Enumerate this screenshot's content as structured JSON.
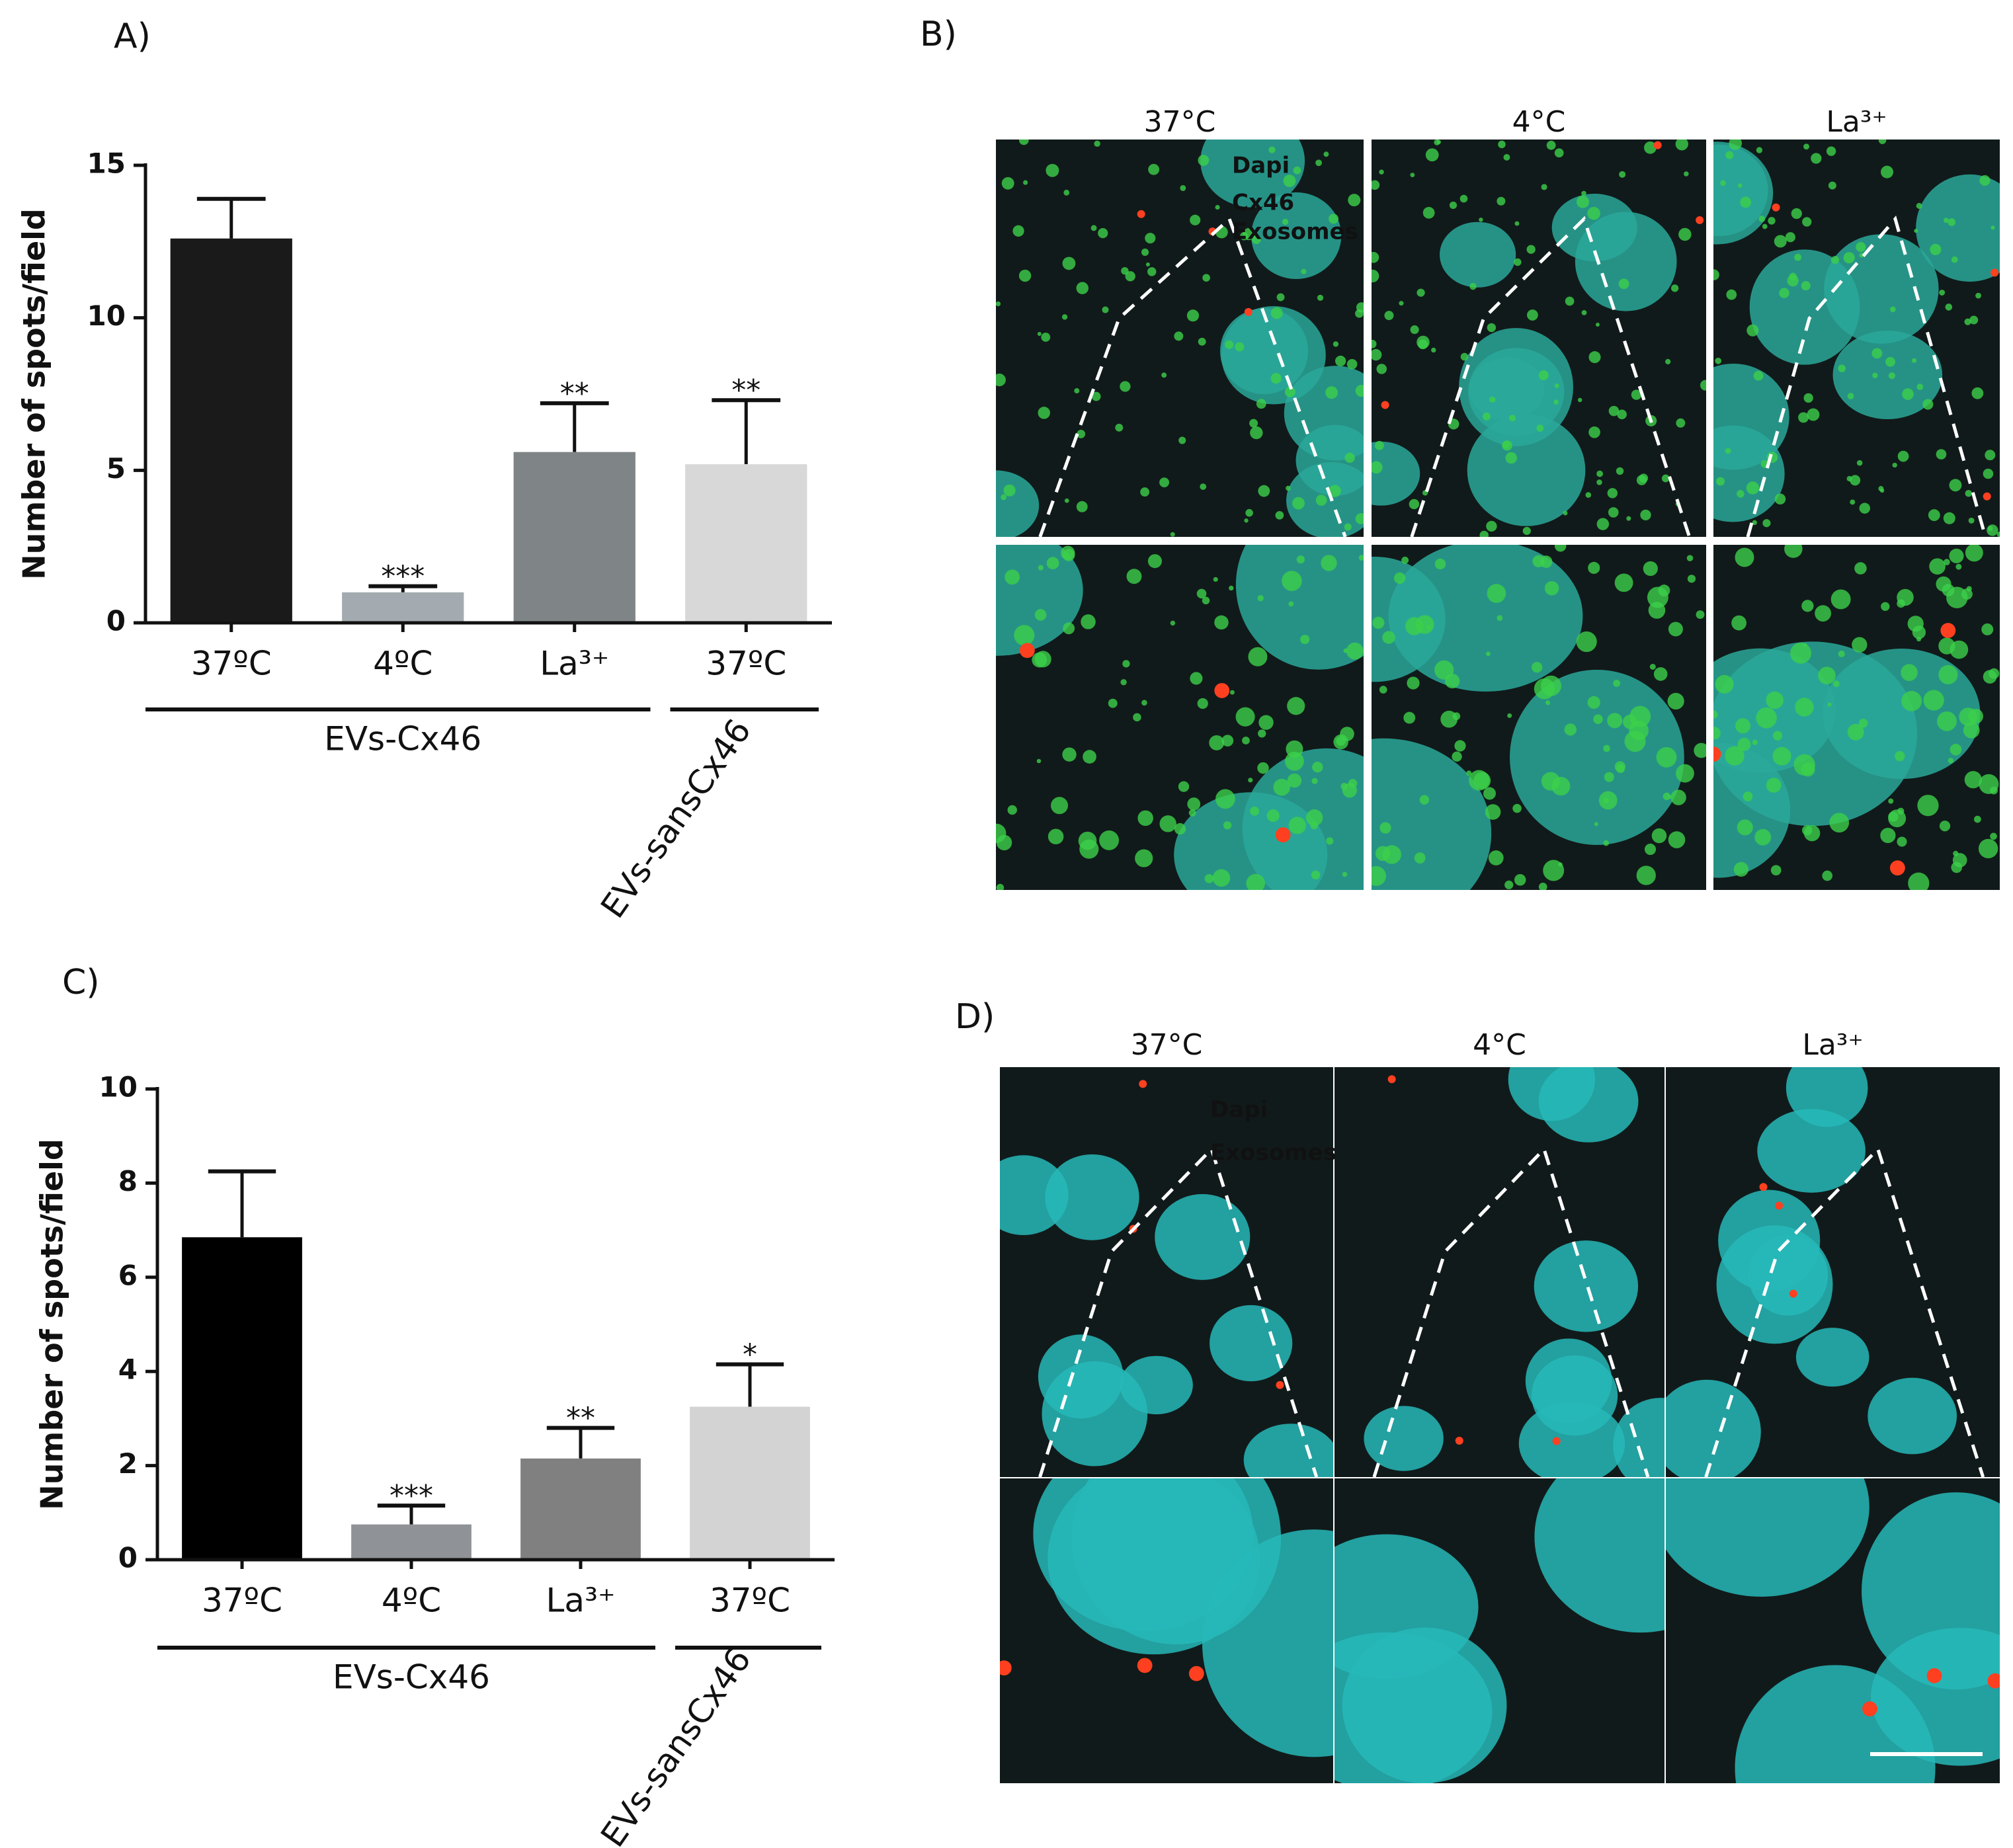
{
  "chart_data": [
    {
      "type": "bar",
      "ylabel": "Number of spots/field",
      "categories": [
        "37ºC",
        "4ºC",
        "La³⁺",
        "37ºC"
      ],
      "values": [
        12.6,
        1.0,
        5.6,
        5.2
      ],
      "errors": [
        1.3,
        0.2,
        1.6,
        2.1
      ],
      "annotations": [
        null,
        "***",
        "**",
        "**"
      ],
      "colors": [
        "#1a1a1a",
        "#a4abb0",
        "#7f8587",
        "#d8d8d8"
      ],
      "group_labels": [
        "EVs-Cx46",
        "EVs-sansCx46"
      ],
      "ylim": [
        0,
        15
      ],
      "yticks": [
        0,
        5,
        10,
        15
      ]
    },
    {
      "type": "bar",
      "ylabel": "Number of spots/field",
      "categories": [
        "37ºC",
        "4ºC",
        "La³⁺",
        "37ºC"
      ],
      "values": [
        6.85,
        0.75,
        2.15,
        3.25
      ],
      "errors": [
        1.4,
        0.4,
        0.65,
        0.9
      ],
      "annotations": [
        null,
        "***",
        "**",
        "*"
      ],
      "colors": [
        "#000000",
        "#8f9397",
        "#808080",
        "#d3d3d3"
      ],
      "group_labels": [
        "EVs-Cx46",
        "EVs-sansCx46"
      ],
      "ylim": [
        0,
        10
      ],
      "yticks": [
        0,
        2,
        4,
        6,
        8,
        10
      ]
    }
  ],
  "panel_labels": [
    "A)",
    "B)",
    "C)",
    "D)"
  ],
  "image_B": {
    "columns": [
      "37°C",
      "4°C",
      "La³⁺"
    ],
    "legend": [
      {
        "text": "Dapi",
        "color": "#3a55c0"
      },
      {
        "text": "Cx46",
        "color": "#7fd030"
      },
      {
        "text": "Exosomes",
        "color": "#e8321e"
      }
    ]
  },
  "image_D": {
    "columns": [
      "37°C",
      "4°C",
      "La³⁺"
    ],
    "legend": [
      {
        "text": "Dapi",
        "color": "#2ab0e8"
      },
      {
        "text": "Exosomes",
        "color": "#e8321e"
      }
    ]
  }
}
